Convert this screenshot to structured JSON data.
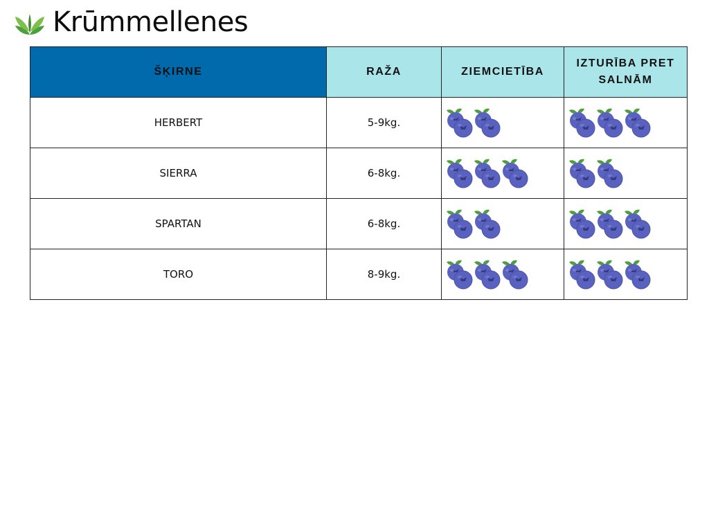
{
  "page": {
    "title": "Krūmmellenes",
    "logo_icon": "leaf-sprout-icon",
    "accent_color": "#006aac",
    "header_color": "#a9e5e9",
    "berry_color": "#5a62bf",
    "leaf_color": "#4c9f3c"
  },
  "table": {
    "headers": [
      "ŠĶIRNE",
      "RAŽA",
      "ZIEMCIETĪBA",
      "IZTURĪBA PRET SALNĀM"
    ],
    "rows": [
      {
        "variety": "HERBERT",
        "yield": "5-9kg.",
        "winter_hardiness": 2,
        "frost_resistance": 3
      },
      {
        "variety": "SIERRA",
        "yield": "6-8kg.",
        "winter_hardiness": 3,
        "frost_resistance": 2
      },
      {
        "variety": "SPARTAN",
        "yield": "6-8kg.",
        "winter_hardiness": 2,
        "frost_resistance": 3
      },
      {
        "variety": "TORO",
        "yield": "8-9kg.",
        "winter_hardiness": 3,
        "frost_resistance": 3
      }
    ],
    "rating_icon": "blueberry-icon"
  }
}
